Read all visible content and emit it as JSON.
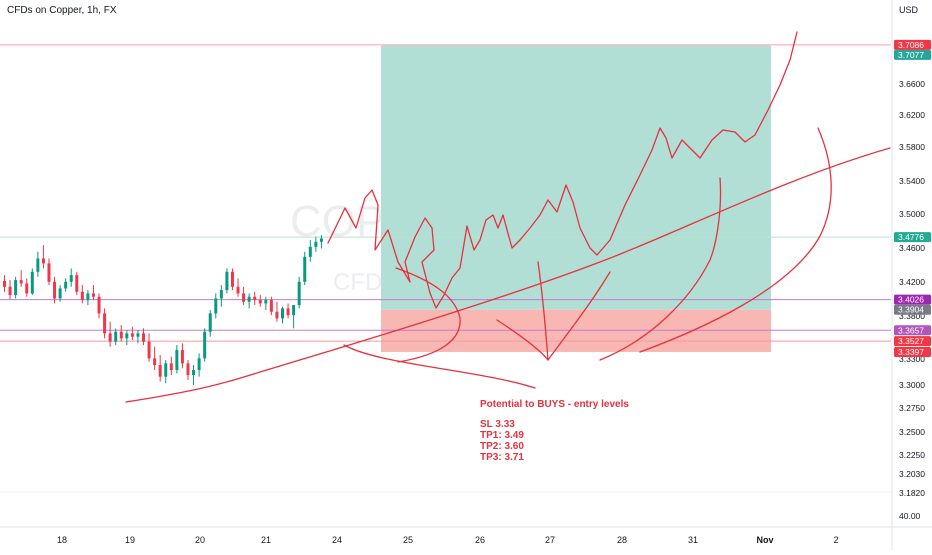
{
  "header": {
    "symbol_title": "CFDs on Copper, 1h, FX",
    "currency": "USD"
  },
  "watermark": {
    "ticker": "COPPER",
    "ticker_suffix": "1h",
    "description": "CFDs on Copper"
  },
  "note": {
    "heading": "Potential to BUYS - entry levels",
    "lines": [
      "SL 3.33",
      "TP1: 3.49",
      "TP2: 3.60",
      "TP3: 3.71"
    ]
  },
  "colors": {
    "bull": "#089981",
    "bear": "#f23645",
    "target_zone": "#b2dfd5",
    "stop_zone": "#f8b7b3",
    "drawing": "#e5323e",
    "level_line": "#b254b8",
    "text": "#131722"
  },
  "chart_data": {
    "type": "candlestick",
    "title": "CFDs on Copper, 1h, FX",
    "ylabel": "USD",
    "ylim": [
      3.17,
      3.735
    ],
    "price_ticks": [
      "3.7000",
      "3.6600",
      "3.6200",
      "3.5800",
      "3.5400",
      "3.5000",
      "3.4600",
      "3.4200",
      "3.3800",
      "3.3300",
      "3.3000",
      "3.2750",
      "3.2500",
      "3.2250",
      "3.2030",
      "3.1820"
    ],
    "volume_axis_label": "40.00",
    "x_tick_labels": [
      "18",
      "19",
      "20",
      "21",
      "24",
      "25",
      "26",
      "27",
      "28",
      "31",
      "Nov",
      "2"
    ],
    "candles_ohlc": [
      [
        3.425,
        3.432,
        3.412,
        3.418
      ],
      [
        3.418,
        3.426,
        3.403,
        3.408
      ],
      [
        3.408,
        3.43,
        3.404,
        3.426
      ],
      [
        3.426,
        3.438,
        3.418,
        3.422
      ],
      [
        3.422,
        3.428,
        3.406,
        3.41
      ],
      [
        3.41,
        3.44,
        3.408,
        3.436
      ],
      [
        3.436,
        3.46,
        3.43,
        3.452
      ],
      [
        3.452,
        3.468,
        3.44,
        3.446
      ],
      [
        3.446,
        3.452,
        3.42,
        3.424
      ],
      [
        3.424,
        3.43,
        3.398,
        3.404
      ],
      [
        3.404,
        3.42,
        3.4,
        3.416
      ],
      [
        3.416,
        3.428,
        3.412,
        3.424
      ],
      [
        3.424,
        3.44,
        3.418,
        3.432
      ],
      [
        3.432,
        3.436,
        3.408,
        3.412
      ],
      [
        3.412,
        3.42,
        3.398,
        3.402
      ],
      [
        3.402,
        3.414,
        3.396,
        3.41
      ],
      [
        3.41,
        3.42,
        3.402,
        3.406
      ],
      [
        3.406,
        3.41,
        3.38,
        3.386
      ],
      [
        3.386,
        3.392,
        3.356,
        3.362
      ],
      [
        3.362,
        3.376,
        3.346,
        3.352
      ],
      [
        3.352,
        3.368,
        3.348,
        3.364
      ],
      [
        3.364,
        3.372,
        3.352,
        3.356
      ],
      [
        3.356,
        3.366,
        3.348,
        3.362
      ],
      [
        3.362,
        3.37,
        3.354,
        3.358
      ],
      [
        3.358,
        3.366,
        3.35,
        3.362
      ],
      [
        3.362,
        3.368,
        3.348,
        3.352
      ],
      [
        3.352,
        3.362,
        3.328,
        3.332
      ],
      [
        3.332,
        3.346,
        3.318,
        3.324
      ],
      [
        3.324,
        3.336,
        3.304,
        3.31
      ],
      [
        3.31,
        3.33,
        3.302,
        3.326
      ],
      [
        3.326,
        3.334,
        3.312,
        3.318
      ],
      [
        3.318,
        3.348,
        3.314,
        3.342
      ],
      [
        3.342,
        3.35,
        3.32,
        3.326
      ],
      [
        3.326,
        3.33,
        3.306,
        3.312
      ],
      [
        3.312,
        3.324,
        3.3,
        3.318
      ],
      [
        3.318,
        3.338,
        3.31,
        3.332
      ],
      [
        3.332,
        3.368,
        3.328,
        3.364
      ],
      [
        3.364,
        3.39,
        3.358,
        3.386
      ],
      [
        3.386,
        3.41,
        3.38,
        3.404
      ],
      [
        3.404,
        3.42,
        3.394,
        3.414
      ],
      [
        3.414,
        3.44,
        3.41,
        3.436
      ],
      [
        3.436,
        3.44,
        3.414,
        3.418
      ],
      [
        3.418,
        3.428,
        3.406,
        3.41
      ],
      [
        3.41,
        3.418,
        3.396,
        3.4
      ],
      [
        3.4,
        3.41,
        3.392,
        3.406
      ],
      [
        3.406,
        3.412,
        3.396,
        3.402
      ],
      [
        3.402,
        3.408,
        3.394,
        3.398
      ],
      [
        3.398,
        3.406,
        3.39,
        3.402
      ],
      [
        3.402,
        3.406,
        3.384,
        3.388
      ],
      [
        3.388,
        3.4,
        3.376,
        3.38
      ],
      [
        3.38,
        3.394,
        3.374,
        3.392
      ],
      [
        3.392,
        3.398,
        3.38,
        3.384
      ],
      [
        3.384,
        3.392,
        3.368,
        3.396
      ],
      [
        3.396,
        3.43,
        3.392,
        3.424
      ],
      [
        3.424,
        3.46,
        3.42,
        3.454
      ],
      [
        3.454,
        3.474,
        3.448,
        3.466
      ],
      [
        3.466,
        3.478,
        3.46,
        3.472
      ],
      [
        3.472,
        3.48,
        3.464,
        3.476
      ]
    ],
    "horizontal_levels": [
      3.7086,
      3.4776,
      3.4026,
      3.3657,
      3.3527
    ],
    "price_labels": [
      {
        "text": "3.7086",
        "value": 3.7086,
        "color": "#f23645"
      },
      {
        "text": "3.7077",
        "value": 3.7077,
        "color": "#26a69a"
      },
      {
        "text": "3.4776",
        "value": 3.4776,
        "color": "#22ab94"
      },
      {
        "text": "3.4026",
        "value": 3.4026,
        "color": "#9c27b0"
      },
      {
        "text": "3.3904",
        "value": 3.3904,
        "color": "#787b86"
      },
      {
        "text": "3.3657",
        "value": 3.3657,
        "color": "#b254b8"
      },
      {
        "text": "3.3527",
        "value": 3.3527,
        "color": "#f23645"
      },
      {
        "text": "3.3397",
        "value": 3.3397,
        "color": "#f23645"
      }
    ],
    "long_position": {
      "entry": 3.3904,
      "target": 3.7077,
      "stop": 3.3397
    }
  }
}
